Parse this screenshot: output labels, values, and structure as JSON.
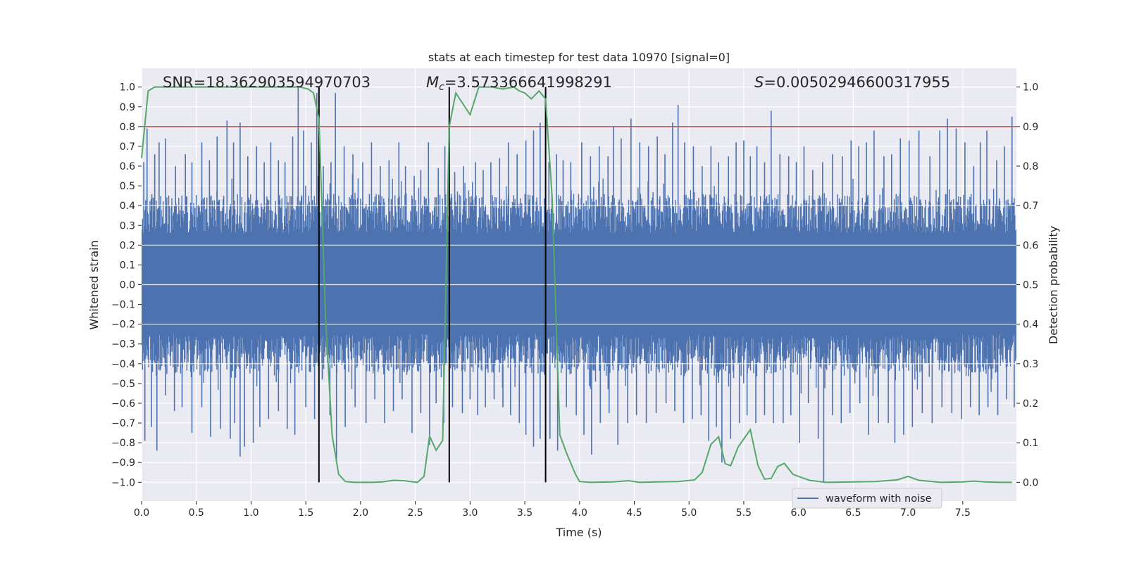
{
  "chart_data": {
    "type": "line",
    "title": "stats at each timestep for test data 10970 [signal=0]",
    "xlabel": "Time (s)",
    "ylabel": "Whitened strain",
    "y2label": "Detection probability",
    "xlim": [
      0.0,
      7.99
    ],
    "ylim": [
      -1.095,
      1.095
    ],
    "y2lim": [
      -0.0475,
      1.0475
    ],
    "xticks": [
      "0.0",
      "0.5",
      "1.0",
      "1.5",
      "2.0",
      "2.5",
      "3.0",
      "3.5",
      "4.0",
      "4.5",
      "5.0",
      "5.5",
      "6.0",
      "6.5",
      "7.0",
      "7.5"
    ],
    "yticks": [
      "1.0",
      "0.9",
      "0.8",
      "0.7",
      "0.6",
      "0.5",
      "0.4",
      "0.3",
      "0.2",
      "0.1",
      "0.0",
      "−0.1",
      "−0.2",
      "−0.3",
      "−0.4",
      "−0.5",
      "−0.6",
      "−0.7",
      "−0.8",
      "−0.9",
      "−1.0"
    ],
    "y2ticks": [
      "1.0",
      "0.9",
      "0.8",
      "0.7",
      "0.6",
      "0.5",
      "0.4",
      "0.3",
      "0.2",
      "0.1",
      "0.0"
    ],
    "threshold": 0.9,
    "grid": true,
    "legend_position": "lower-right",
    "annotations": {
      "snr": "SNR=18.362903594970703",
      "mc_prefix": "M",
      "mc_sub": "c",
      "mc_value": "=3.573366641998291",
      "s_prefix": "S",
      "s_value": "=0.00502946600317955"
    },
    "vertical_markers_s": [
      1.62,
      2.81,
      3.69
    ],
    "waveform": {
      "name": "waveform with noise",
      "color": "#4c72b0",
      "spike_up": [
        [
          0.02,
          0.62
        ],
        [
          0.05,
          0.79
        ],
        [
          0.12,
          0.66
        ],
        [
          0.16,
          0.72
        ],
        [
          0.22,
          0.74
        ],
        [
          0.31,
          0.6
        ],
        [
          0.4,
          0.66
        ],
        [
          0.46,
          0.62
        ],
        [
          0.55,
          0.72
        ],
        [
          0.62,
          0.63
        ],
        [
          0.69,
          0.75
        ],
        [
          0.78,
          0.83
        ],
        [
          0.84,
          0.72
        ],
        [
          0.9,
          0.82
        ],
        [
          0.97,
          0.65
        ],
        [
          1.05,
          0.7
        ],
        [
          1.12,
          0.62
        ],
        [
          1.18,
          0.72
        ],
        [
          1.25,
          0.63
        ],
        [
          1.31,
          0.62
        ],
        [
          1.38,
          0.75
        ],
        [
          1.43,
          1.0
        ],
        [
          1.48,
          0.78
        ],
        [
          1.55,
          0.72
        ],
        [
          1.6,
          0.97
        ],
        [
          1.66,
          0.6
        ],
        [
          1.73,
          0.62
        ],
        [
          1.77,
          0.97
        ],
        [
          1.85,
          0.7
        ],
        [
          1.93,
          0.66
        ],
        [
          2.02,
          0.62
        ],
        [
          2.1,
          0.72
        ],
        [
          2.18,
          0.6
        ],
        [
          2.26,
          0.63
        ],
        [
          2.35,
          0.72
        ],
        [
          2.41,
          0.6
        ],
        [
          2.49,
          0.55
        ],
        [
          2.55,
          0.58
        ],
        [
          2.62,
          0.72
        ],
        [
          2.71,
          0.59
        ],
        [
          2.77,
          0.7
        ],
        [
          2.86,
          0.57
        ],
        [
          2.94,
          0.6
        ],
        [
          3.05,
          0.62
        ],
        [
          3.12,
          0.58
        ],
        [
          3.19,
          0.62
        ],
        [
          3.27,
          0.64
        ],
        [
          3.35,
          0.72
        ],
        [
          3.43,
          0.66
        ],
        [
          3.51,
          0.73
        ],
        [
          3.58,
          0.78
        ],
        [
          3.64,
          0.82
        ],
        [
          3.72,
          0.62
        ],
        [
          3.79,
          0.66
        ],
        [
          3.85,
          0.63
        ],
        [
          3.92,
          0.62
        ],
        [
          4.02,
          0.72
        ],
        [
          4.1,
          0.65
        ],
        [
          4.18,
          0.7
        ],
        [
          4.26,
          0.65
        ],
        [
          4.31,
          0.8
        ],
        [
          4.38,
          0.74
        ],
        [
          4.47,
          0.84
        ],
        [
          4.55,
          0.72
        ],
        [
          4.63,
          0.7
        ],
        [
          4.71,
          0.75
        ],
        [
          4.78,
          0.66
        ],
        [
          4.85,
          0.82
        ],
        [
          4.9,
          0.91
        ],
        [
          4.96,
          0.72
        ],
        [
          5.04,
          0.7
        ],
        [
          5.12,
          0.6
        ],
        [
          5.2,
          0.7
        ],
        [
          5.27,
          0.62
        ],
        [
          5.36,
          0.65
        ],
        [
          5.43,
          0.72
        ],
        [
          5.5,
          0.73
        ],
        [
          5.56,
          0.65
        ],
        [
          5.62,
          0.7
        ],
        [
          5.69,
          0.62
        ],
        [
          5.75,
          0.88
        ],
        [
          5.83,
          0.66
        ],
        [
          5.91,
          0.65
        ],
        [
          5.98,
          0.62
        ],
        [
          6.05,
          0.7
        ],
        [
          6.13,
          0.58
        ],
        [
          6.22,
          0.62
        ],
        [
          6.31,
          0.66
        ],
        [
          6.4,
          0.65
        ],
        [
          6.48,
          0.73
        ],
        [
          6.55,
          0.7
        ],
        [
          6.62,
          0.72
        ],
        [
          6.69,
          0.78
        ],
        [
          6.78,
          0.65
        ],
        [
          6.85,
          0.66
        ],
        [
          6.93,
          0.74
        ],
        [
          7.01,
          0.73
        ],
        [
          7.1,
          0.78
        ],
        [
          7.2,
          0.65
        ],
        [
          7.29,
          0.78
        ],
        [
          7.36,
          0.84
        ],
        [
          7.44,
          0.79
        ],
        [
          7.52,
          0.72
        ],
        [
          7.6,
          0.6
        ],
        [
          7.66,
          0.72
        ],
        [
          7.72,
          0.78
        ],
        [
          7.81,
          0.63
        ],
        [
          7.88,
          0.7
        ],
        [
          7.95,
          0.85
        ]
      ],
      "spike_down": [
        [
          0.03,
          -0.79
        ],
        [
          0.09,
          -0.72
        ],
        [
          0.14,
          -0.84
        ],
        [
          0.22,
          -0.56
        ],
        [
          0.3,
          -0.64
        ],
        [
          0.37,
          -0.62
        ],
        [
          0.46,
          -0.75
        ],
        [
          0.55,
          -0.62
        ],
        [
          0.63,
          -0.77
        ],
        [
          0.72,
          -0.73
        ],
        [
          0.81,
          -0.78
        ],
        [
          0.85,
          -0.7
        ],
        [
          0.9,
          -0.87
        ],
        [
          0.94,
          -0.82
        ],
        [
          1.02,
          -0.8
        ],
        [
          1.08,
          -0.72
        ],
        [
          1.16,
          -0.68
        ],
        [
          1.25,
          -0.64
        ],
        [
          1.33,
          -0.73
        ],
        [
          1.4,
          -0.76
        ],
        [
          1.5,
          -0.62
        ],
        [
          1.58,
          -0.68
        ],
        [
          1.65,
          -0.48
        ],
        [
          1.72,
          -0.66
        ],
        [
          1.78,
          -0.9
        ],
        [
          1.86,
          -0.72
        ],
        [
          1.95,
          -0.62
        ],
        [
          2.05,
          -0.7
        ],
        [
          2.13,
          -0.58
        ],
        [
          2.22,
          -0.7
        ],
        [
          2.3,
          -0.64
        ],
        [
          2.38,
          -0.58
        ],
        [
          2.47,
          -0.75
        ],
        [
          2.55,
          -0.65
        ],
        [
          2.63,
          -0.81
        ],
        [
          2.69,
          -0.6
        ],
        [
          2.76,
          -0.7
        ],
        [
          2.84,
          -0.62
        ],
        [
          2.93,
          -0.65
        ],
        [
          3.0,
          -0.58
        ],
        [
          3.07,
          -0.66
        ],
        [
          3.14,
          -0.62
        ],
        [
          3.22,
          -0.58
        ],
        [
          3.3,
          -0.62
        ],
        [
          3.37,
          -0.66
        ],
        [
          3.45,
          -0.7
        ],
        [
          3.51,
          -0.76
        ],
        [
          3.58,
          -0.82
        ],
        [
          3.64,
          -0.78
        ],
        [
          3.73,
          -0.78
        ],
        [
          3.8,
          -0.84
        ],
        [
          3.88,
          -0.62
        ],
        [
          3.97,
          -0.66
        ],
        [
          4.04,
          -0.76
        ],
        [
          4.11,
          -0.86
        ],
        [
          4.19,
          -0.7
        ],
        [
          4.27,
          -0.65
        ],
        [
          4.35,
          -0.81
        ],
        [
          4.44,
          -0.7
        ],
        [
          4.52,
          -0.66
        ],
        [
          4.61,
          -0.7
        ],
        [
          4.7,
          -0.65
        ],
        [
          4.79,
          -0.6
        ],
        [
          4.87,
          -0.64
        ],
        [
          4.95,
          -0.7
        ],
        [
          5.03,
          -0.68
        ],
        [
          5.11,
          -0.66
        ],
        [
          5.18,
          -0.79
        ],
        [
          5.25,
          -0.72
        ],
        [
          5.3,
          -0.9
        ],
        [
          5.38,
          -0.78
        ],
        [
          5.46,
          -0.7
        ],
        [
          5.53,
          -0.66
        ],
        [
          5.61,
          -0.7
        ],
        [
          5.69,
          -0.66
        ],
        [
          5.77,
          -0.7
        ],
        [
          5.86,
          -0.7
        ],
        [
          5.93,
          -0.66
        ],
        [
          6.01,
          -0.8
        ],
        [
          6.09,
          -0.6
        ],
        [
          6.18,
          -0.78
        ],
        [
          6.23,
          -1.0
        ],
        [
          6.31,
          -0.66
        ],
        [
          6.39,
          -0.7
        ],
        [
          6.47,
          -0.65
        ],
        [
          6.56,
          -0.6
        ],
        [
          6.64,
          -0.76
        ],
        [
          6.73,
          -0.7
        ],
        [
          6.82,
          -0.7
        ],
        [
          6.88,
          -0.8
        ],
        [
          6.96,
          -0.76
        ],
        [
          7.04,
          -0.72
        ],
        [
          7.13,
          -0.65
        ],
        [
          7.22,
          -0.7
        ],
        [
          7.31,
          -0.62
        ],
        [
          7.4,
          -0.65
        ],
        [
          7.49,
          -0.68
        ],
        [
          7.57,
          -0.62
        ],
        [
          7.65,
          -0.66
        ],
        [
          7.73,
          -0.62
        ],
        [
          7.82,
          -0.66
        ],
        [
          7.9,
          -0.58
        ],
        [
          7.97,
          -0.62
        ]
      ]
    },
    "probability": {
      "color": "#55a868",
      "points": [
        [
          0.0,
          0.82
        ],
        [
          0.06,
          0.99
        ],
        [
          0.12,
          1.0
        ],
        [
          0.3,
          1.0
        ],
        [
          0.6,
          1.0
        ],
        [
          0.9,
          1.0
        ],
        [
          1.2,
          1.0
        ],
        [
          1.45,
          1.0
        ],
        [
          1.52,
          0.995
        ],
        [
          1.57,
          0.985
        ],
        [
          1.62,
          0.92
        ],
        [
          1.68,
          0.42
        ],
        [
          1.74,
          0.12
        ],
        [
          1.8,
          0.02
        ],
        [
          1.86,
          0.002
        ],
        [
          1.95,
          0.0
        ],
        [
          2.1,
          0.0
        ],
        [
          2.2,
          0.001
        ],
        [
          2.3,
          0.005
        ],
        [
          2.4,
          0.004
        ],
        [
          2.48,
          0.001
        ],
        [
          2.52,
          0.0
        ],
        [
          2.58,
          0.015
        ],
        [
          2.63,
          0.117
        ],
        [
          2.69,
          0.081
        ],
        [
          2.75,
          0.106
        ],
        [
          2.81,
          0.9
        ],
        [
          2.87,
          0.985
        ],
        [
          3.0,
          0.93
        ],
        [
          3.08,
          1.0
        ],
        [
          3.2,
          1.0
        ],
        [
          3.3,
          0.995
        ],
        [
          3.4,
          1.0
        ],
        [
          3.45,
          0.99
        ],
        [
          3.5,
          0.985
        ],
        [
          3.56,
          0.97
        ],
        [
          3.63,
          0.99
        ],
        [
          3.69,
          0.97
        ],
        [
          3.75,
          0.72
        ],
        [
          3.82,
          0.12
        ],
        [
          3.88,
          0.075
        ],
        [
          3.96,
          0.022
        ],
        [
          4.0,
          0.002
        ],
        [
          4.1,
          0.0
        ],
        [
          4.3,
          0.001
        ],
        [
          4.45,
          0.004
        ],
        [
          4.55,
          0.0
        ],
        [
          4.7,
          0.001
        ],
        [
          4.9,
          0.002
        ],
        [
          5.05,
          0.006
        ],
        [
          5.12,
          0.025
        ],
        [
          5.2,
          0.096
        ],
        [
          5.27,
          0.115
        ],
        [
          5.33,
          0.047
        ],
        [
          5.38,
          0.042
        ],
        [
          5.45,
          0.09
        ],
        [
          5.56,
          0.133
        ],
        [
          5.63,
          0.042
        ],
        [
          5.69,
          0.008
        ],
        [
          5.75,
          0.01
        ],
        [
          5.81,
          0.04
        ],
        [
          5.87,
          0.048
        ],
        [
          5.95,
          0.02
        ],
        [
          6.1,
          0.005
        ],
        [
          6.25,
          0.0
        ],
        [
          6.5,
          0.001
        ],
        [
          6.7,
          0.002
        ],
        [
          6.9,
          0.006
        ],
        [
          7.0,
          0.015
        ],
        [
          7.1,
          0.005
        ],
        [
          7.3,
          0.0
        ],
        [
          7.5,
          0.001
        ],
        [
          7.6,
          0.003
        ],
        [
          7.7,
          0.001
        ],
        [
          7.85,
          0.0
        ],
        [
          7.95,
          0.0
        ]
      ]
    },
    "colors": {
      "plot_bg": "#eaeaf2",
      "grid": "#ffffff",
      "threshold": "#c44e52",
      "markers": "#000000"
    }
  }
}
